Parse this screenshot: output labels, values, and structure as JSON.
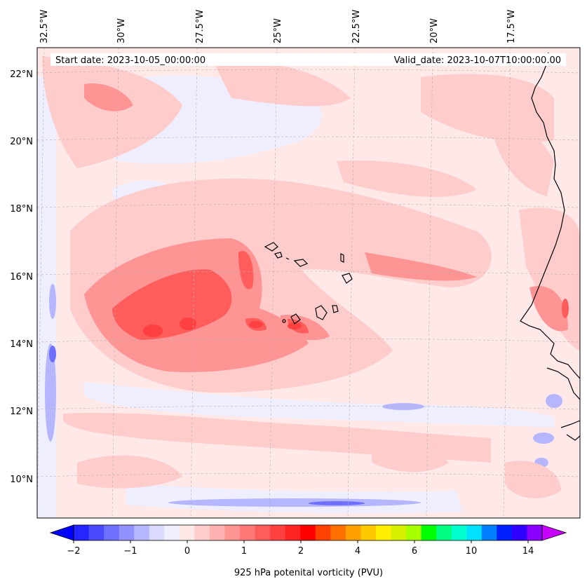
{
  "header": {
    "start_date": "Start date: 2023-10-05_00:00:00",
    "valid_date": "Valid_date: 2023-10-07T10:00:00.00"
  },
  "axes": {
    "longitude_labels": [
      "32.5°W",
      "30°W",
      "27.5°W",
      "25°W",
      "22.5°W",
      "20°W",
      "17.5°W"
    ],
    "latitude_labels": [
      "22°N",
      "20°N",
      "18°N",
      "16°N",
      "14°N",
      "12°N",
      "10°N"
    ]
  },
  "colorbar": {
    "title": "925 hPa potenital vorticity (PVU)",
    "tick_labels": [
      "−2",
      "−1",
      "0",
      "1",
      "2",
      "4",
      "6",
      "10",
      "14"
    ],
    "colors": [
      "#0000ff",
      "#2525ff",
      "#4a4aff",
      "#6e6eff",
      "#9292ff",
      "#b6b6ff",
      "#dadaff",
      "#eeeeff",
      "#ffe8e8",
      "#ffcccc",
      "#ffb0b0",
      "#ff9494",
      "#ff7878",
      "#ff5c5c",
      "#ff4040",
      "#ff2424",
      "#ff0000",
      "#ff4000",
      "#ff7000",
      "#ffa000",
      "#ffc800",
      "#ffee00",
      "#d8f000",
      "#a8ff00",
      "#00ff00",
      "#00ff80",
      "#00ffcc",
      "#00e0ff",
      "#0080ff",
      "#0020ff",
      "#3000ff",
      "#8a00ff",
      "#c800ff"
    ]
  },
  "colors": {
    "background_field": "#ffe8e8",
    "weak_positive": "#ffcccc",
    "moderate_positive": "#ff9494",
    "strong_positive": "#ff5c5c",
    "weak_negative": "#eeeeff",
    "negative": "#b6b6ff",
    "coastline": "#000000"
  }
}
